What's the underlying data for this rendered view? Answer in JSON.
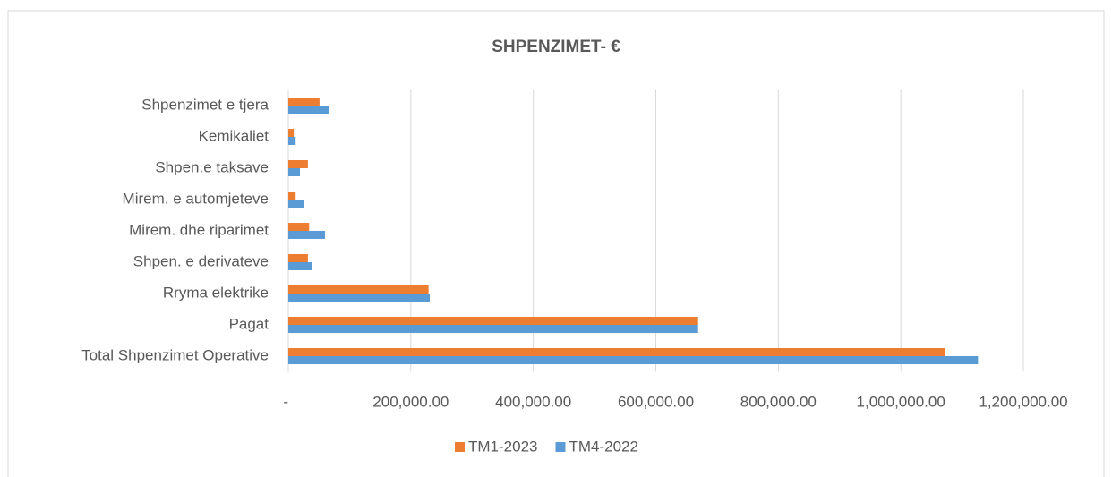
{
  "chart_data": {
    "type": "hbar",
    "title": "SHPENZIMET- €",
    "categories": [
      "Shpenzimet e tjera",
      "Kemikaliet",
      "Shpen.e taksave",
      "Mirem. e automjeteve",
      "Mirem. dhe riparimet",
      "Shpen. e derivateve",
      "Rryma elektrike",
      "Pagat",
      "Total Shpenzimet Operative"
    ],
    "series": [
      {
        "name": "TM1-2023",
        "color": "#ed7d31",
        "values": [
          51000,
          9000,
          32000,
          12000,
          34000,
          32000,
          229000,
          669000,
          1072000
        ]
      },
      {
        "name": "TM4-2022",
        "color": "#5b9bd5",
        "values": [
          66000,
          12000,
          19000,
          26000,
          60000,
          39000,
          231000,
          669000,
          1126000
        ]
      }
    ],
    "xlim": [
      0,
      1200000
    ],
    "xticks": [
      {
        "value": 0,
        "label": "-"
      },
      {
        "value": 200000,
        "label": "200,000.00"
      },
      {
        "value": 400000,
        "label": "400,000.00"
      },
      {
        "value": 600000,
        "label": "600,000.00"
      },
      {
        "value": 800000,
        "label": "800,000.00"
      },
      {
        "value": 1000000,
        "label": "1,000,000.00"
      },
      {
        "value": 1200000,
        "label": "1,200,000.00"
      }
    ],
    "grid": true,
    "legend": "bottom"
  }
}
